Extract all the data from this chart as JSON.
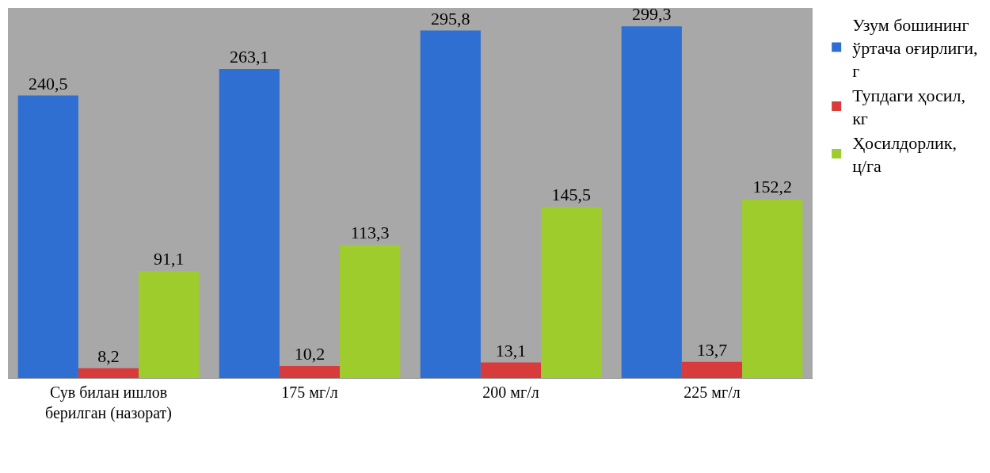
{
  "chart_data": {
    "type": "bar",
    "categories": [
      "Сув билан ишлов берилган (назорат)",
      "175 мг/л",
      "200 мг/л",
      "225 мг/л"
    ],
    "series": [
      {
        "name": "Узум бошининг ўртача оғирлиги, г",
        "color": "#2f6fd1",
        "values": [
          240.5,
          263.1,
          295.8,
          299.3
        ],
        "value_labels": [
          "240,5",
          "263,1",
          "295,8",
          "299,3"
        ]
      },
      {
        "name": "Тупдаги ҳосил, кг",
        "color": "#d83b3b",
        "values": [
          8.2,
          10.2,
          13.1,
          13.7
        ],
        "value_labels": [
          "8,2",
          "10,2",
          "13,1",
          "13,7"
        ]
      },
      {
        "name": "Ҳосилдорлик, ц/га",
        "color": "#9dcc2c",
        "values": [
          91.1,
          113.3,
          145.5,
          152.2
        ],
        "value_labels": [
          "91,1",
          "113,3",
          "145,5",
          "152,2"
        ]
      }
    ],
    "legend": "right",
    "grid": false
  }
}
